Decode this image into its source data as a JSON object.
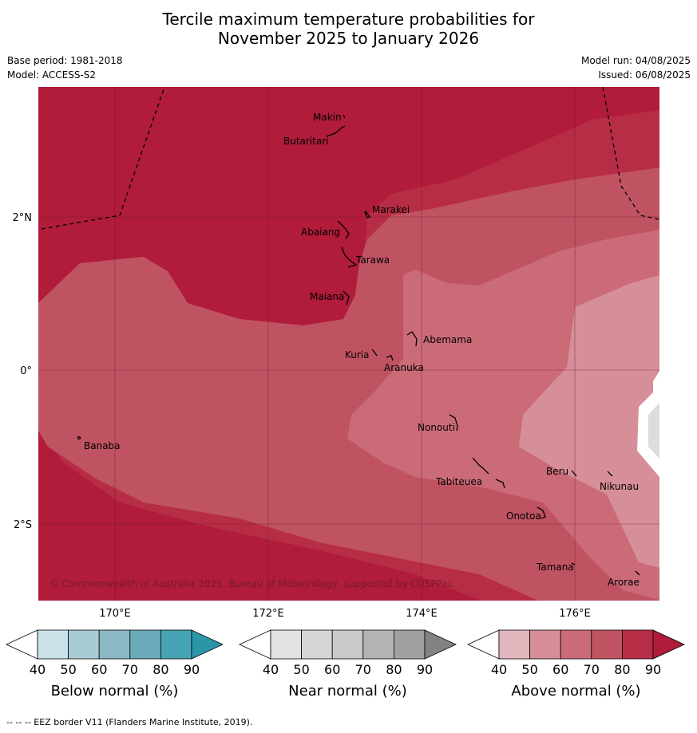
{
  "title": {
    "line1": "Tercile maximum temperature probabilities for",
    "line2": "November 2025 to January 2026"
  },
  "meta": {
    "base_period": "Base period: 1981-2018",
    "model": "Model: ACCESS-S2",
    "model_run": "Model run: 04/08/2025",
    "issued": "Issued: 06/08/2025"
  },
  "map": {
    "lon_ticks": [
      "170°E",
      "172°E",
      "174°E",
      "176°E"
    ],
    "lat_ticks": [
      "2°N",
      "0°",
      "2°S"
    ],
    "copyright": "© Commonwealth of Australia 2025, Bureau of Meteorology, supported by COSPPac",
    "place_labels": [
      "Makin",
      "Butaritari",
      "Marakei",
      "Abaiang",
      "Tarawa",
      "Maiana",
      "Abemama",
      "Kuria",
      "Aranuka",
      "Banaba",
      "Nonouti",
      "Tabiteuea",
      "Beru",
      "Nikunau",
      "Onotoa",
      "Tamana",
      "Arorae"
    ]
  },
  "colorbars": [
    {
      "title": "Below normal (%)",
      "ticks": [
        "40",
        "50",
        "60",
        "70",
        "80",
        "90"
      ],
      "colors": [
        "#ffffff",
        "#c9e2ea",
        "#a9cbd4",
        "#8bb8c5",
        "#6aaab9",
        "#46a3b3",
        "#2c96a8"
      ]
    },
    {
      "title": "Near normal (%)",
      "ticks": [
        "40",
        "50",
        "60",
        "70",
        "80",
        "90"
      ],
      "colors": [
        "#ffffff",
        "#e3e3e3",
        "#d6d6d6",
        "#c9c9c9",
        "#b4b4b4",
        "#a0a0a0",
        "#838383"
      ]
    },
    {
      "title": "Above normal (%)",
      "ticks": [
        "40",
        "50",
        "60",
        "70",
        "80",
        "90"
      ],
      "colors": [
        "#ffffff",
        "#e2b6bd",
        "#d68e99",
        "#cb6b78",
        "#c05362",
        "#b72d45",
        "#b01c3a"
      ]
    }
  ],
  "footnote": "--  --  -- EEZ border V11 (Flanders Marine Institute, 2019)."
}
